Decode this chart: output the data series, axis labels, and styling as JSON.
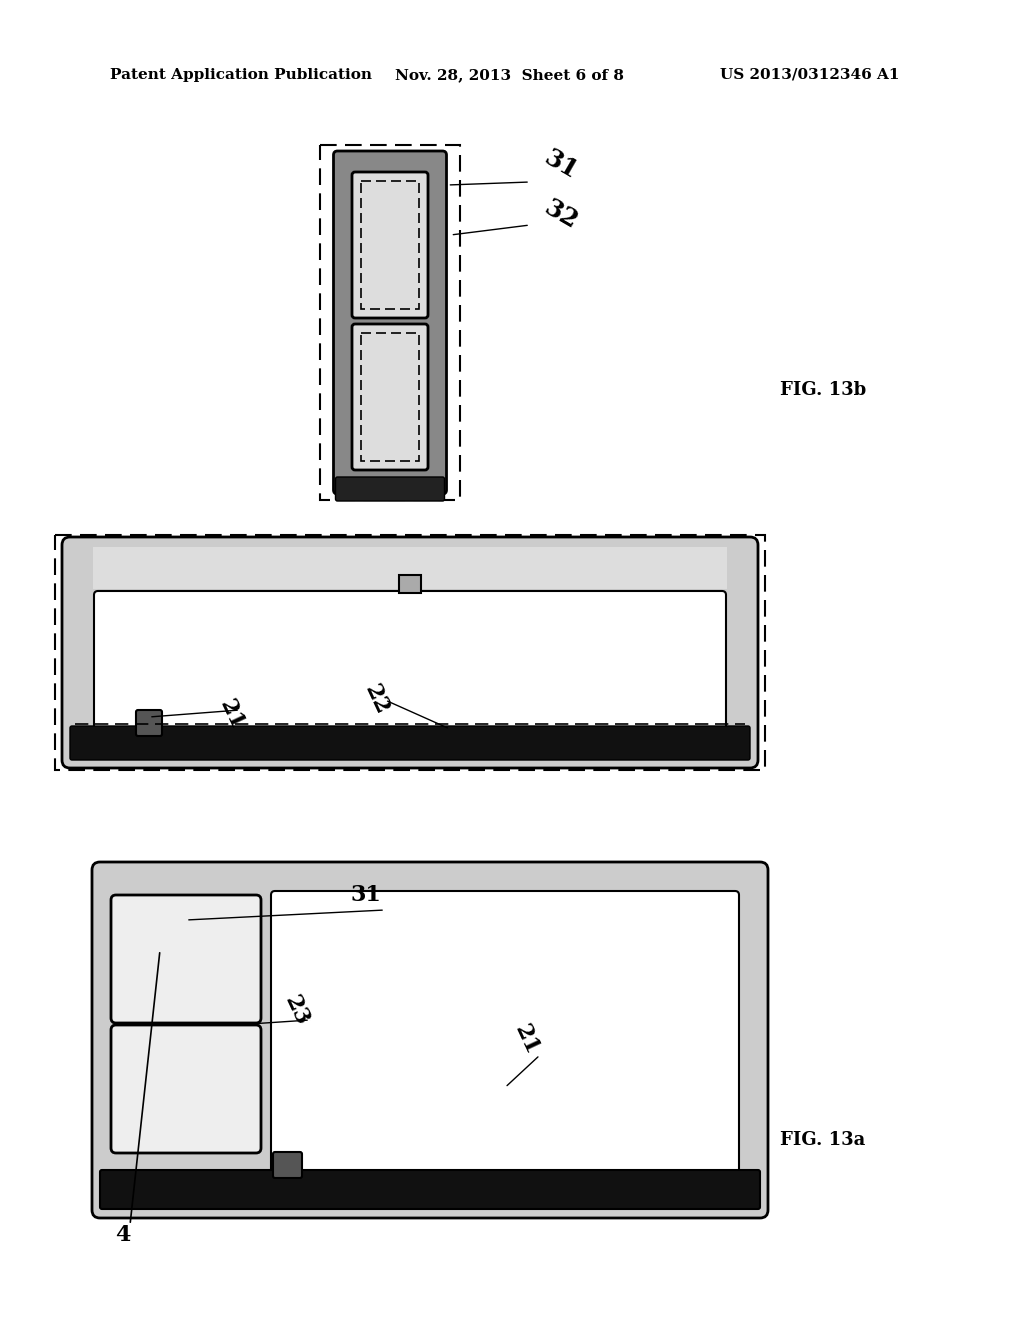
{
  "bg_color": "#ffffff",
  "header_text1": "Patent Application Publication",
  "header_text2": "Nov. 28, 2013  Sheet 6 of 8",
  "header_text3": "US 2013/0312346 A1",
  "fig13b_label": "FIG. 13b",
  "fig13a_label": "FIG. 13a",
  "label_31_top": "31",
  "label_32_top": "32",
  "label_21_mid": "21",
  "label_22_mid": "22",
  "label_31_bot": "31",
  "label_23_bot": "23",
  "label_21_bot": "21",
  "label_4_bot": "4"
}
